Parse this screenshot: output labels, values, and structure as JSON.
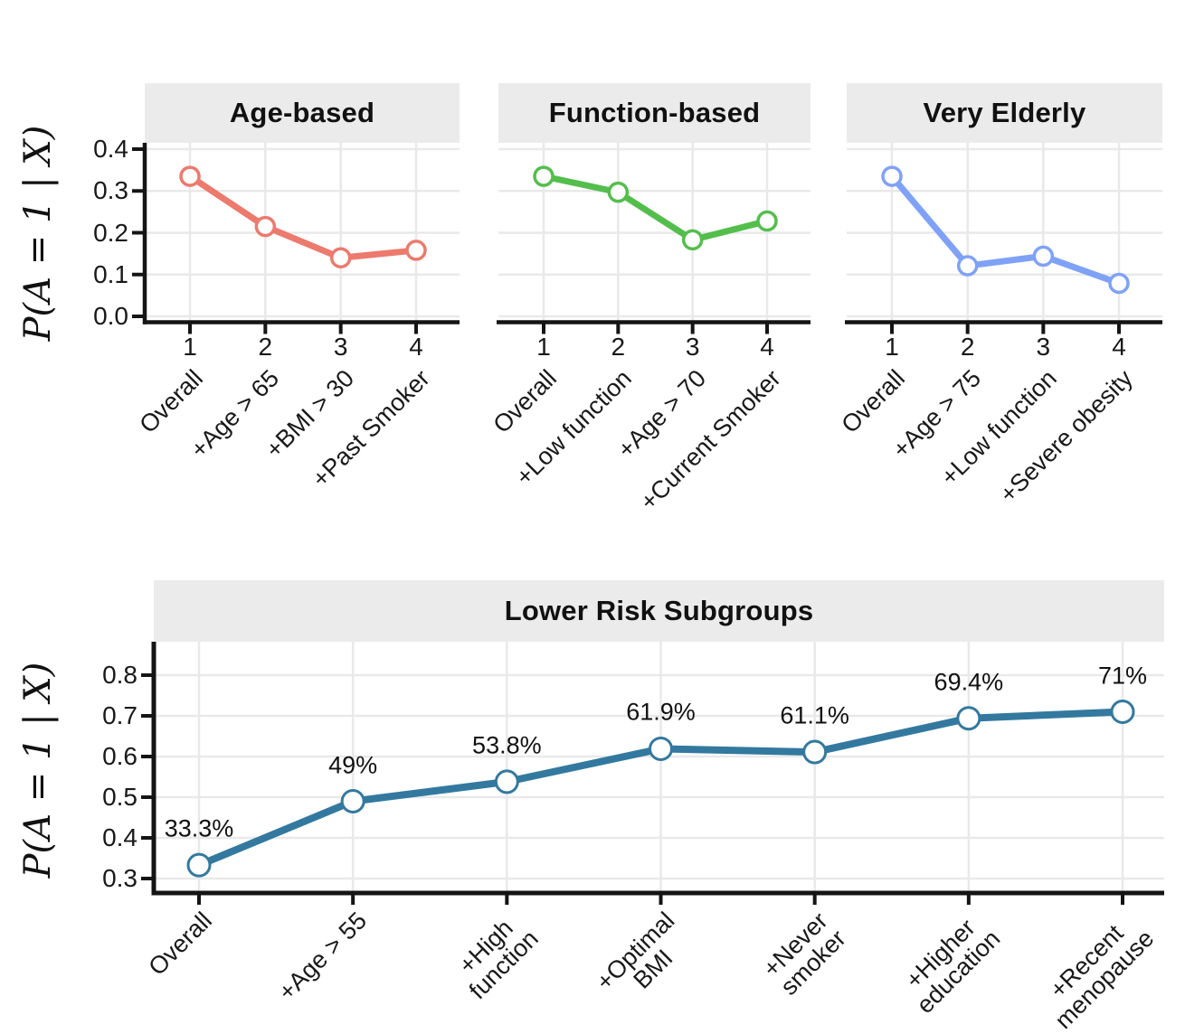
{
  "chart_data": [
    {
      "type": "line",
      "title": "Age-based",
      "color": "#ec7a6d",
      "categories": [
        "Overall",
        "+Age > 65",
        "+BMI > 30",
        "+Past Smoker"
      ],
      "x_tick_numbers": [
        "1",
        "2",
        "3",
        "4"
      ],
      "values": [
        0.335,
        0.215,
        0.14,
        0.158
      ],
      "ylabel": "P(A = 1 | X)",
      "ylim": [
        0.0,
        0.42
      ],
      "yticks": [
        0.0,
        0.1,
        0.2,
        0.3,
        0.4
      ],
      "grid": "major",
      "legend": "none"
    },
    {
      "type": "line",
      "title": "Function-based",
      "color": "#54be4d",
      "categories": [
        "Overall",
        "+Low function",
        "+Age > 70",
        "+Current Smoker"
      ],
      "x_tick_numbers": [
        "1",
        "2",
        "3",
        "4"
      ],
      "values": [
        0.335,
        0.297,
        0.183,
        0.228
      ],
      "ylabel": "P(A = 1 | X)",
      "ylim": [
        0.0,
        0.42
      ],
      "yticks": [
        0.0,
        0.1,
        0.2,
        0.3,
        0.4
      ],
      "grid": "major",
      "legend": "none"
    },
    {
      "type": "line",
      "title": "Very Elderly",
      "color": "#7fa2f7",
      "categories": [
        "Overall",
        "+Age > 75",
        "+Low function",
        "+Severe obesity"
      ],
      "x_tick_numbers": [
        "1",
        "2",
        "3",
        "4"
      ],
      "values": [
        0.335,
        0.121,
        0.144,
        0.079
      ],
      "ylabel": "P(A = 1 | X)",
      "ylim": [
        0.0,
        0.42
      ],
      "yticks": [
        0.0,
        0.1,
        0.2,
        0.3,
        0.4
      ],
      "grid": "major",
      "legend": "none"
    },
    {
      "type": "line",
      "title": "Lower Risk Subgroups",
      "color": "#33799f",
      "categories": [
        "Overall",
        "+Age > 55",
        "+High\nfunction",
        "+Optimal\nBMI",
        "+Never\nsmoker",
        "+Higher\neducation",
        "+Recent\nmenopause"
      ],
      "values": [
        0.333,
        0.49,
        0.538,
        0.619,
        0.611,
        0.694,
        0.71
      ],
      "point_labels": [
        "33.3%",
        "49%",
        "53.8%",
        "61.9%",
        "61.1%",
        "69.4%",
        "71%"
      ],
      "ylabel": "P(A = 1 | X)",
      "ylim": [
        0.3,
        0.88
      ],
      "yticks": [
        0.3,
        0.4,
        0.5,
        0.6,
        0.7,
        0.8
      ],
      "grid": "major",
      "legend": "none"
    }
  ]
}
